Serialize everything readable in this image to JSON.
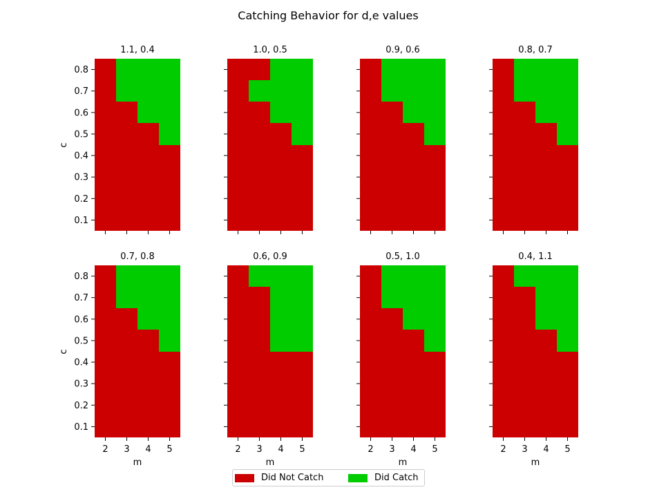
{
  "chart_data": {
    "type": "heatmap",
    "title": "Catching Behavior for d,e values",
    "xlabel": "m",
    "ylabel": "c",
    "x": [
      2,
      3,
      4,
      5
    ],
    "y": [
      0.1,
      0.2,
      0.3,
      0.4,
      0.5,
      0.6,
      0.7,
      0.8
    ],
    "x_tick_labels": [
      "2",
      "3",
      "4",
      "5"
    ],
    "y_tick_labels": [
      "0.1",
      "0.2",
      "0.3",
      "0.4",
      "0.5",
      "0.6",
      "0.7",
      "0.8"
    ],
    "colors": {
      "not_catch": "#cc0000",
      "catch": "#00cc00"
    },
    "legend": {
      "placement": "bottom-center",
      "entries": [
        {
          "label": "Did Not Catch",
          "value": 0,
          "color": "#cc0000"
        },
        {
          "label": "Did Catch",
          "value": 1,
          "color": "#00cc00"
        }
      ]
    },
    "cell_encoding": "grid rows ordered by c from 0.8 (top) down to 0.1; columns by m 2..5; 1 = Did Catch, 0 = Did Not Catch",
    "panels": [
      {
        "title": "1.1, 0.4",
        "grid": [
          [
            0,
            1,
            1,
            1
          ],
          [
            0,
            1,
            1,
            1
          ],
          [
            0,
            0,
            1,
            1
          ],
          [
            0,
            0,
            0,
            1
          ],
          [
            0,
            0,
            0,
            0
          ],
          [
            0,
            0,
            0,
            0
          ],
          [
            0,
            0,
            0,
            0
          ],
          [
            0,
            0,
            0,
            0
          ]
        ]
      },
      {
        "title": "1.0, 0.5",
        "grid": [
          [
            0,
            0,
            1,
            1
          ],
          [
            0,
            1,
            1,
            1
          ],
          [
            0,
            0,
            1,
            1
          ],
          [
            0,
            0,
            0,
            1
          ],
          [
            0,
            0,
            0,
            0
          ],
          [
            0,
            0,
            0,
            0
          ],
          [
            0,
            0,
            0,
            0
          ],
          [
            0,
            0,
            0,
            0
          ]
        ]
      },
      {
        "title": "0.9, 0.6",
        "grid": [
          [
            0,
            1,
            1,
            1
          ],
          [
            0,
            1,
            1,
            1
          ],
          [
            0,
            0,
            1,
            1
          ],
          [
            0,
            0,
            0,
            1
          ],
          [
            0,
            0,
            0,
            0
          ],
          [
            0,
            0,
            0,
            0
          ],
          [
            0,
            0,
            0,
            0
          ],
          [
            0,
            0,
            0,
            0
          ]
        ]
      },
      {
        "title": "0.8, 0.7",
        "grid": [
          [
            0,
            1,
            1,
            1
          ],
          [
            0,
            1,
            1,
            1
          ],
          [
            0,
            0,
            1,
            1
          ],
          [
            0,
            0,
            0,
            1
          ],
          [
            0,
            0,
            0,
            0
          ],
          [
            0,
            0,
            0,
            0
          ],
          [
            0,
            0,
            0,
            0
          ],
          [
            0,
            0,
            0,
            0
          ]
        ]
      },
      {
        "title": "0.7, 0.8",
        "grid": [
          [
            0,
            1,
            1,
            1
          ],
          [
            0,
            1,
            1,
            1
          ],
          [
            0,
            0,
            1,
            1
          ],
          [
            0,
            0,
            0,
            1
          ],
          [
            0,
            0,
            0,
            0
          ],
          [
            0,
            0,
            0,
            0
          ],
          [
            0,
            0,
            0,
            0
          ],
          [
            0,
            0,
            0,
            0
          ]
        ]
      },
      {
        "title": "0.6, 0.9",
        "grid": [
          [
            0,
            1,
            1,
            1
          ],
          [
            0,
            0,
            1,
            1
          ],
          [
            0,
            0,
            1,
            1
          ],
          [
            0,
            0,
            1,
            1
          ],
          [
            0,
            0,
            0,
            0
          ],
          [
            0,
            0,
            0,
            0
          ],
          [
            0,
            0,
            0,
            0
          ],
          [
            0,
            0,
            0,
            0
          ]
        ]
      },
      {
        "title": "0.5, 1.0",
        "grid": [
          [
            0,
            1,
            1,
            1
          ],
          [
            0,
            1,
            1,
            1
          ],
          [
            0,
            0,
            1,
            1
          ],
          [
            0,
            0,
            0,
            1
          ],
          [
            0,
            0,
            0,
            0
          ],
          [
            0,
            0,
            0,
            0
          ],
          [
            0,
            0,
            0,
            0
          ],
          [
            0,
            0,
            0,
            0
          ]
        ]
      },
      {
        "title": "0.4, 1.1",
        "grid": [
          [
            0,
            1,
            1,
            1
          ],
          [
            0,
            0,
            1,
            1
          ],
          [
            0,
            0,
            1,
            1
          ],
          [
            0,
            0,
            0,
            1
          ],
          [
            0,
            0,
            0,
            0
          ],
          [
            0,
            0,
            0,
            0
          ],
          [
            0,
            0,
            0,
            0
          ],
          [
            0,
            0,
            0,
            0
          ]
        ]
      }
    ]
  }
}
